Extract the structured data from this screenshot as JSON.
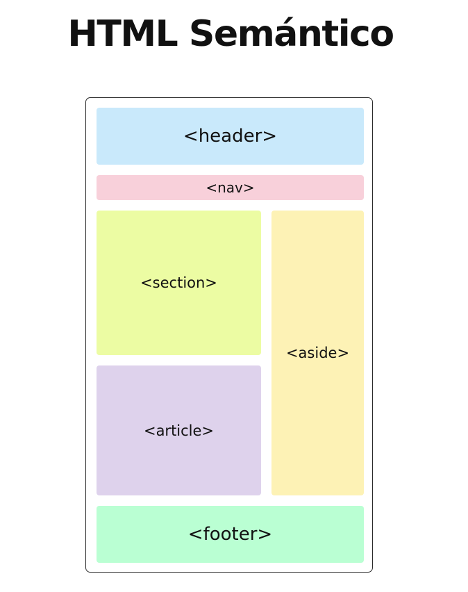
{
  "title": "HTML Semántico",
  "diagram": {
    "blocks": {
      "header": {
        "label": "<header>",
        "color": "#c9e9fb"
      },
      "nav": {
        "label": "<nav>",
        "color": "#f8d0da"
      },
      "section": {
        "label": "<section>",
        "color": "#ecfca3"
      },
      "article": {
        "label": "<article>",
        "color": "#ded2ec"
      },
      "aside": {
        "label": "<aside>",
        "color": "#fdf2b5"
      },
      "footer": {
        "label": "<footer>",
        "color": "#baffd3"
      }
    }
  }
}
